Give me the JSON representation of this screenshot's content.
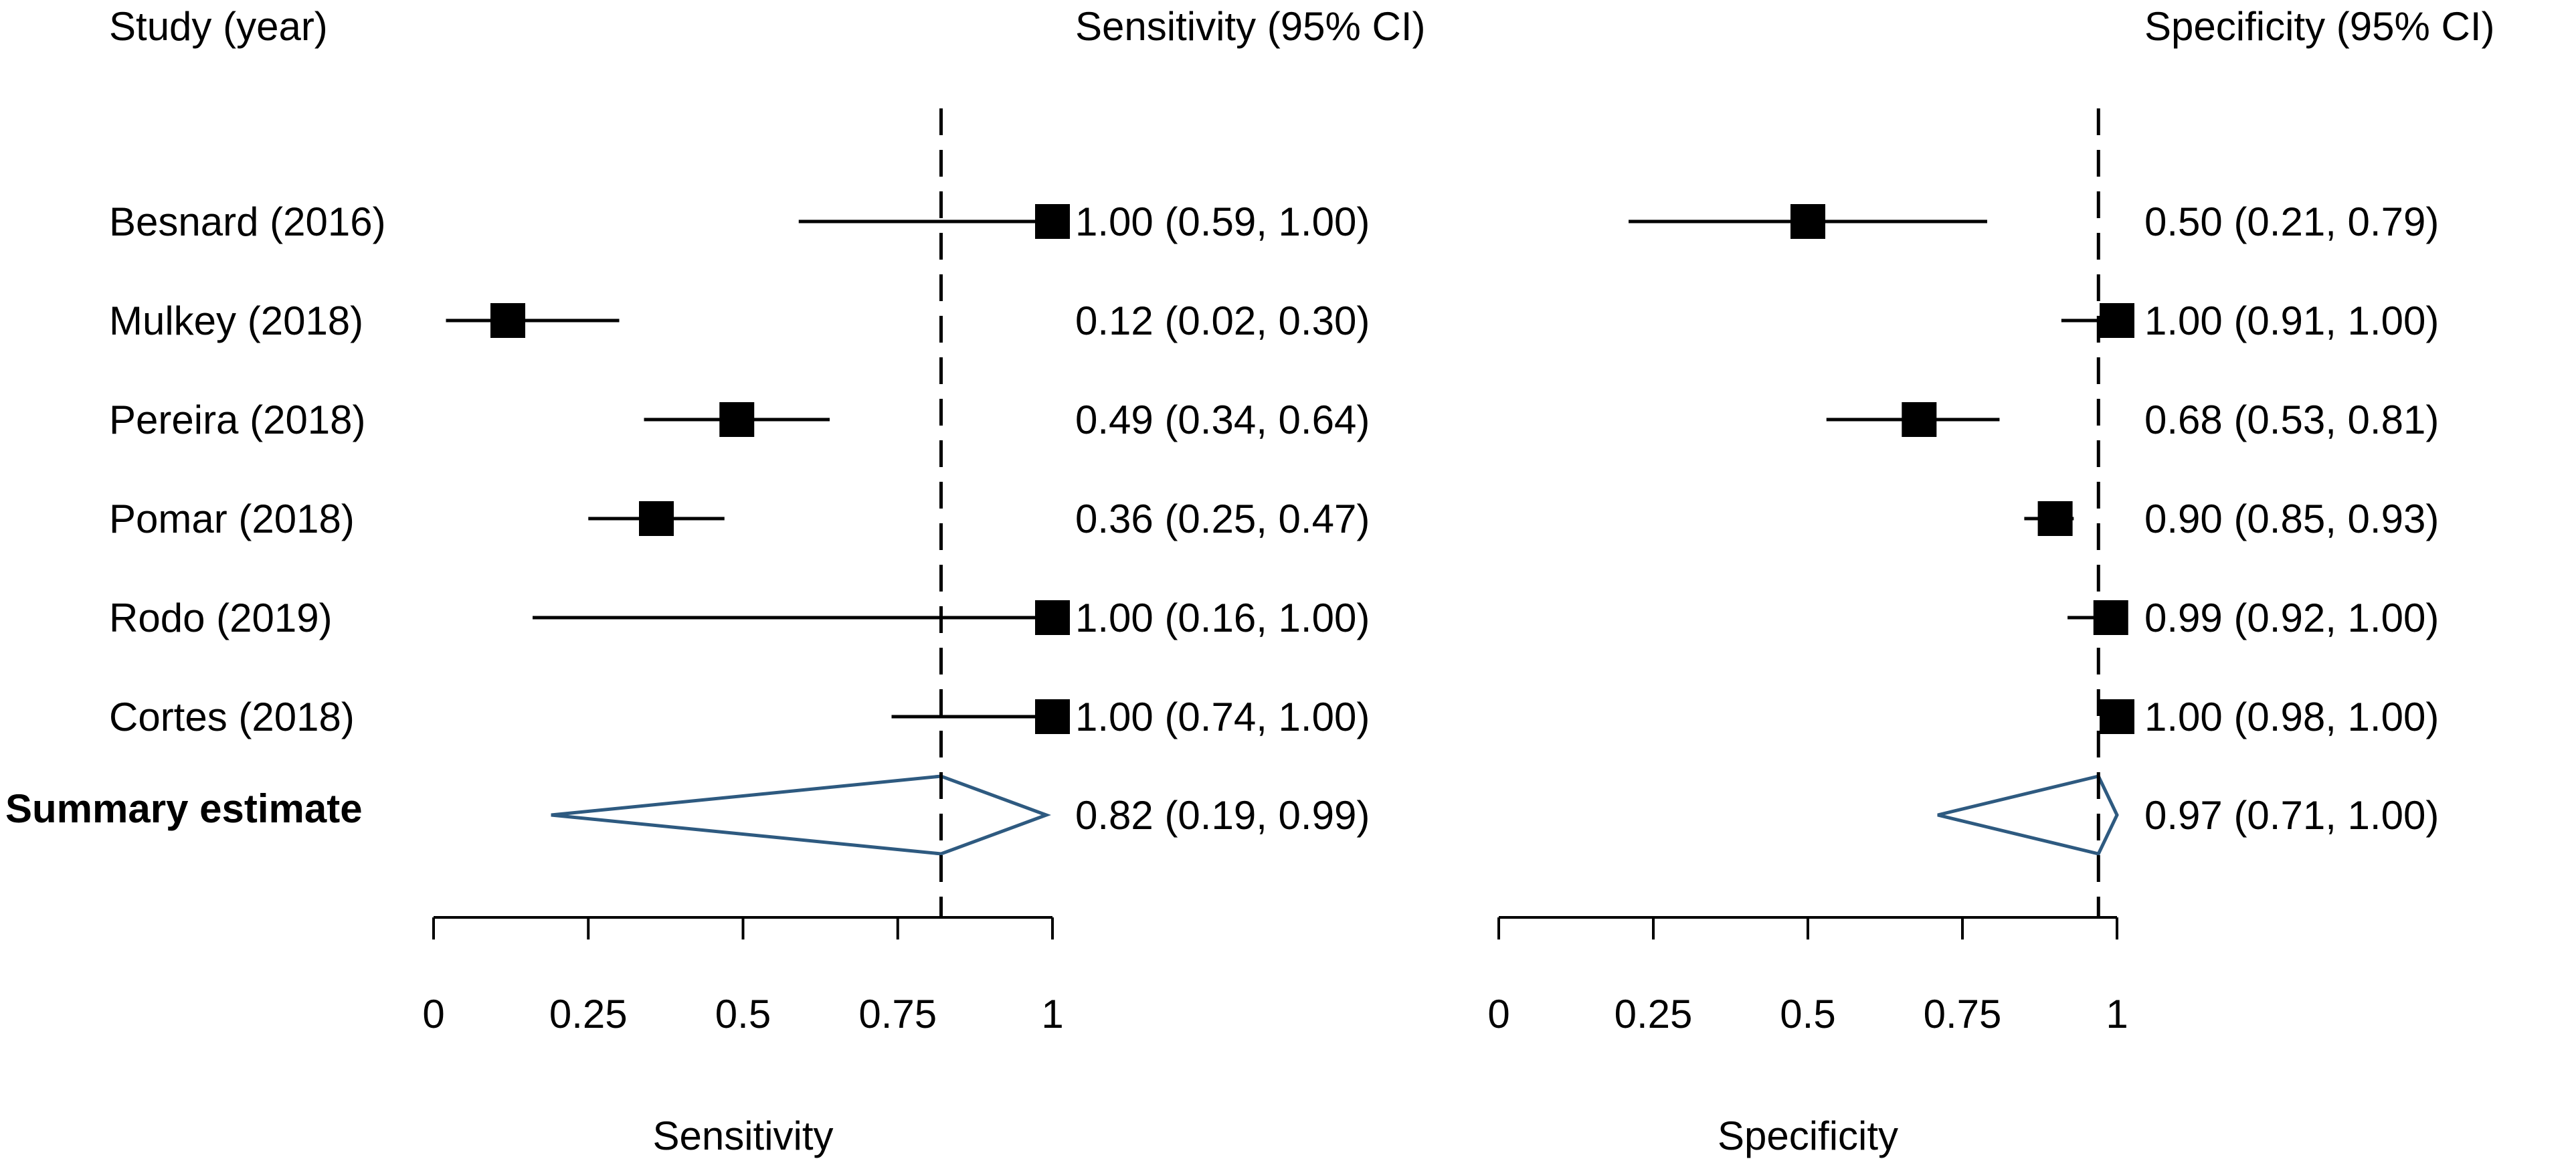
{
  "chart_data": {
    "type": "forest",
    "headers": {
      "study": "Study (year)",
      "sensitivity": "Sensitivity (95% CI)",
      "specificity": "Specificity (95% CI)"
    },
    "studies": [
      {
        "label": "Besnard (2016)",
        "sensitivity": {
          "estimate": 1.0,
          "lower": 0.59,
          "upper": 1.0,
          "text": "1.00 (0.59, 1.00)"
        },
        "specificity": {
          "estimate": 0.5,
          "lower": 0.21,
          "upper": 0.79,
          "text": "0.50 (0.21, 0.79)"
        }
      },
      {
        "label": "Mulkey (2018)",
        "sensitivity": {
          "estimate": 0.12,
          "lower": 0.02,
          "upper": 0.3,
          "text": "0.12 (0.02, 0.30)"
        },
        "specificity": {
          "estimate": 1.0,
          "lower": 0.91,
          "upper": 1.0,
          "text": "1.00 (0.91, 1.00)"
        }
      },
      {
        "label": "Pereira (2018)",
        "sensitivity": {
          "estimate": 0.49,
          "lower": 0.34,
          "upper": 0.64,
          "text": "0.49 (0.34, 0.64)"
        },
        "specificity": {
          "estimate": 0.68,
          "lower": 0.53,
          "upper": 0.81,
          "text": "0.68 (0.53, 0.81)"
        }
      },
      {
        "label": "Pomar (2018)",
        "sensitivity": {
          "estimate": 0.36,
          "lower": 0.25,
          "upper": 0.47,
          "text": "0.36 (0.25, 0.47)"
        },
        "specificity": {
          "estimate": 0.9,
          "lower": 0.85,
          "upper": 0.93,
          "text": "0.90 (0.85, 0.93)"
        }
      },
      {
        "label": "Rodo (2019)",
        "sensitivity": {
          "estimate": 1.0,
          "lower": 0.16,
          "upper": 1.0,
          "text": "1.00 (0.16, 1.00)"
        },
        "specificity": {
          "estimate": 0.99,
          "lower": 0.92,
          "upper": 1.0,
          "text": "0.99 (0.92, 1.00)"
        }
      },
      {
        "label": "Cortes (2018)",
        "sensitivity": {
          "estimate": 1.0,
          "lower": 0.74,
          "upper": 1.0,
          "text": "1.00 (0.74, 1.00)"
        },
        "specificity": {
          "estimate": 1.0,
          "lower": 0.98,
          "upper": 1.0,
          "text": "1.00 (0.98, 1.00)"
        }
      }
    ],
    "summary": {
      "label": "Summary estimate",
      "sensitivity": {
        "estimate": 0.82,
        "lower": 0.19,
        "upper": 0.99,
        "text": "0.82 (0.19, 0.99)"
      },
      "specificity": {
        "estimate": 0.97,
        "lower": 0.71,
        "upper": 1.0,
        "text": "0.97 (0.71, 1.00)"
      }
    },
    "axes": {
      "sensitivity": {
        "label": "Sensitivity",
        "range": [
          0,
          1
        ],
        "ticks": [
          0,
          0.25,
          0.5,
          0.75,
          1
        ],
        "tick_labels": [
          "0",
          "0.25",
          "0.5",
          "0.75",
          "1"
        ]
      },
      "specificity": {
        "label": "Specificity",
        "range": [
          0,
          1
        ],
        "ticks": [
          0,
          0.25,
          0.5,
          0.75,
          1
        ],
        "tick_labels": [
          "0",
          "0.25",
          "0.5",
          "0.75",
          "1"
        ]
      }
    },
    "colors": {
      "marker": "#000000",
      "summary_outline": "#2e5a80"
    }
  }
}
